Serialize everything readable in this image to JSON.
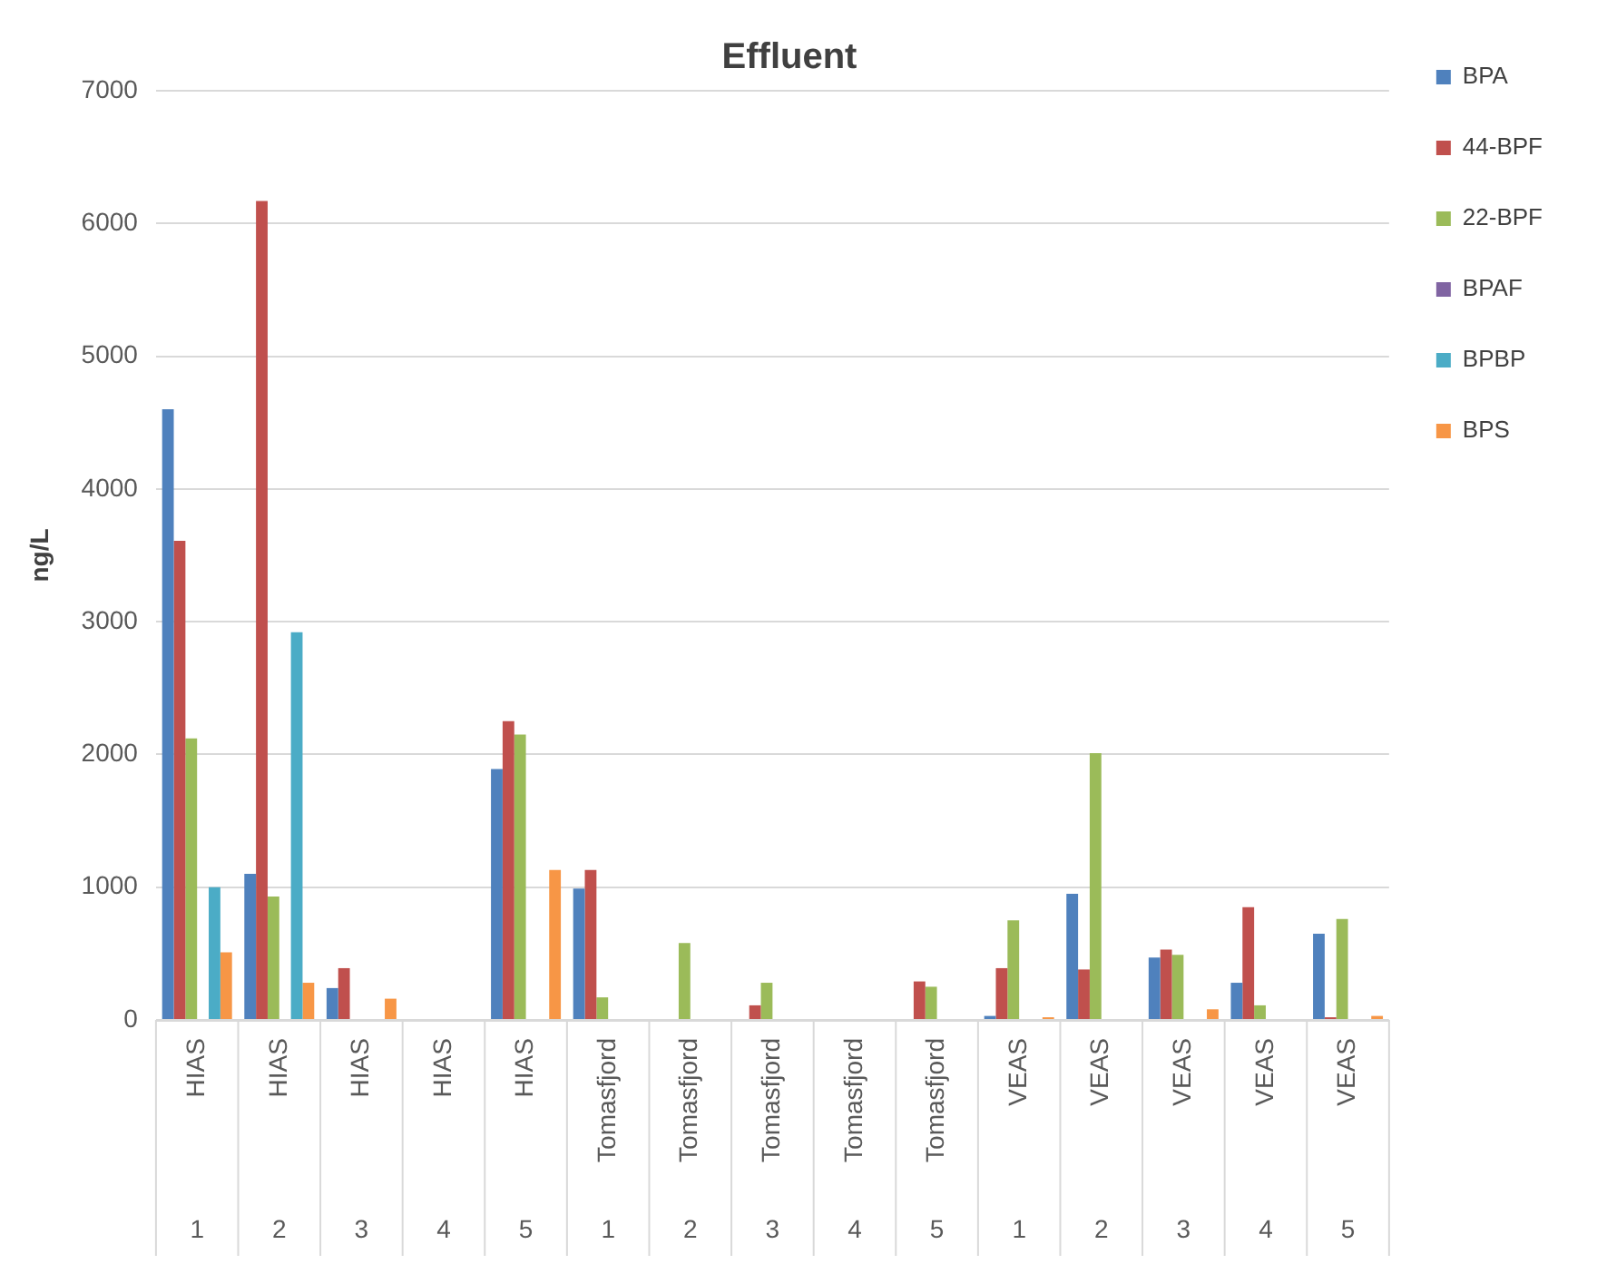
{
  "chart_data": {
    "type": "bar",
    "title": "Effluent",
    "ylabel": "ng/L",
    "categories": [
      "HIAS 1",
      "HIAS 2",
      "HIAS 3",
      "HIAS 4",
      "HIAS 5",
      "Tomasfjord 1",
      "Tomasfjord 2",
      "Tomasfjord 3",
      "Tomasfjord 4",
      "Tomasfjord 5",
      "VEAS 1",
      "VEAS 2",
      "VEAS 3",
      "VEAS 4",
      "VEAS 5"
    ],
    "series": [
      {
        "name": "BPA",
        "color": "#4f81bd",
        "values": [
          4600,
          1100,
          240,
          0,
          1890,
          990,
          0,
          0,
          0,
          0,
          30,
          950,
          470,
          280,
          650
        ]
      },
      {
        "name": "44-BPF",
        "color": "#c0504d",
        "values": [
          3610,
          6170,
          390,
          0,
          2250,
          1130,
          0,
          110,
          0,
          290,
          390,
          380,
          530,
          850,
          20
        ]
      },
      {
        "name": "22-BPF",
        "color": "#9bbb59",
        "values": [
          2120,
          930,
          0,
          0,
          2150,
          170,
          580,
          280,
          0,
          250,
          750,
          2010,
          490,
          110,
          760
        ]
      },
      {
        "name": "BPAF",
        "color": "#8064a2",
        "values": [
          0,
          0,
          0,
          0,
          0,
          0,
          0,
          0,
          0,
          0,
          0,
          0,
          0,
          0,
          0
        ]
      },
      {
        "name": "BPBP",
        "color": "#4bacc6",
        "values": [
          1000,
          2920,
          0,
          0,
          0,
          0,
          0,
          0,
          0,
          0,
          0,
          0,
          0,
          0,
          0
        ]
      },
      {
        "name": "BPS",
        "color": "#f79646",
        "values": [
          510,
          280,
          160,
          0,
          1130,
          0,
          0,
          0,
          0,
          0,
          20,
          0,
          80,
          0,
          30
        ]
      }
    ],
    "ylim": [
      0,
      7000
    ],
    "yticks": [
      0,
      1000,
      2000,
      3000,
      4000,
      5000,
      6000,
      7000
    ],
    "grid": "y",
    "legend": "top right"
  }
}
